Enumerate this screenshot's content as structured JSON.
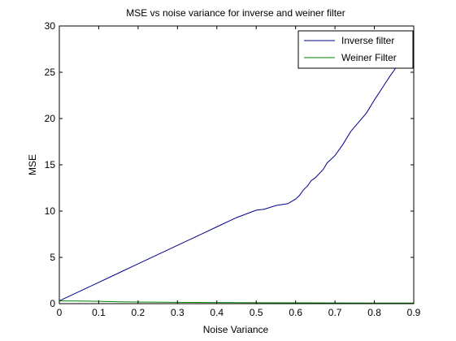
{
  "chart_data": {
    "type": "line",
    "title": "MSE vs noise variance for inverse and weiner filter",
    "xlabel": "Noise Variance",
    "ylabel": "MSE",
    "xlim": [
      0,
      0.9
    ],
    "ylim": [
      0,
      30
    ],
    "xticks": [
      0,
      0.1,
      0.2,
      0.3,
      0.4,
      0.5,
      0.6,
      0.7,
      0.8,
      0.9
    ],
    "xtick_labels": [
      "0",
      "0.1",
      "0.2",
      "0.3",
      "0.4",
      "0.5",
      "0.6",
      "0.7",
      "0.8",
      "0.9"
    ],
    "yticks": [
      0,
      5,
      10,
      15,
      20,
      25,
      30
    ],
    "ytick_labels": [
      "0",
      "5",
      "10",
      "15",
      "20",
      "25",
      "30"
    ],
    "grid": false,
    "legend_position": "top-right",
    "series": [
      {
        "name": "Inverse filter",
        "color": "#00008b",
        "x": [
          0,
          0.05,
          0.1,
          0.15,
          0.2,
          0.25,
          0.3,
          0.35,
          0.4,
          0.45,
          0.5,
          0.52,
          0.55,
          0.58,
          0.6,
          0.61,
          0.62,
          0.63,
          0.64,
          0.65,
          0.67,
          0.68,
          0.7,
          0.72,
          0.74,
          0.76,
          0.78,
          0.8,
          0.82,
          0.84,
          0.86,
          0.88,
          0.9
        ],
        "y": [
          0.3,
          1.3,
          2.3,
          3.3,
          4.3,
          5.3,
          6.3,
          7.3,
          8.3,
          9.3,
          10.1,
          10.2,
          10.6,
          10.8,
          11.3,
          11.7,
          12.3,
          12.7,
          13.3,
          13.6,
          14.5,
          15.2,
          16.0,
          17.2,
          18.6,
          19.6,
          20.6,
          22.0,
          23.3,
          24.6,
          25.8,
          27.0,
          28.0
        ]
      },
      {
        "name": "Weiner Filter",
        "color": "#008000",
        "x": [
          0,
          0.05,
          0.1,
          0.15,
          0.2,
          0.3,
          0.4,
          0.5,
          0.6,
          0.7,
          0.8,
          0.9
        ],
        "y": [
          0.3,
          0.28,
          0.25,
          0.2,
          0.17,
          0.14,
          0.12,
          0.1,
          0.09,
          0.08,
          0.07,
          0.07
        ]
      }
    ]
  }
}
